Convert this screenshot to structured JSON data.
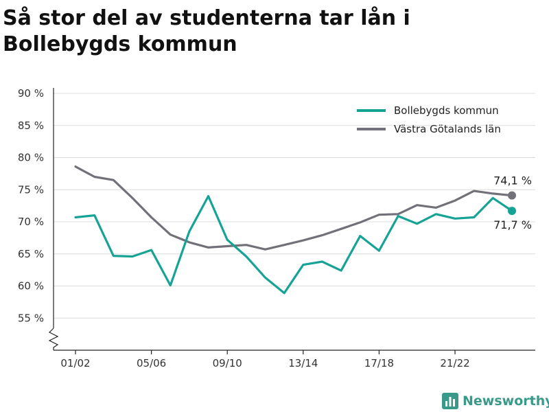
{
  "colors": {
    "series_1": "#16a396",
    "series_2": "#727078",
    "grid": "#dcdcdc",
    "axis": "#222222",
    "brand": "#3a9a8a"
  },
  "brand": {
    "name": "Newsworthy",
    "icon": "bar-chart-logo-icon"
  },
  "chart_data": {
    "type": "line",
    "title": "Så stor del av studenterna tar lån i Bollebygds kommun",
    "xlabel": "",
    "ylabel": "",
    "y_tick_values": [
      55,
      60,
      65,
      70,
      75,
      80,
      85,
      90
    ],
    "y_tick_labels": [
      "55 %",
      "60 %",
      "65 %",
      "70 %",
      "75 %",
      "80 %",
      "85 %",
      "90 %"
    ],
    "ylim": [
      50,
      90
    ],
    "y_axis_break": true,
    "grid": true,
    "legend_position": "top-right",
    "x_tick_labels": [
      "01/02",
      "05/06",
      "09/10",
      "13/14",
      "17/18",
      "21/22"
    ],
    "x_tick_positions": [
      0,
      4,
      8,
      12,
      16,
      20
    ],
    "x_count": 24,
    "series": [
      {
        "name": "Bollebygds kommun",
        "values": [
          70.7,
          71.0,
          64.7,
          64.6,
          65.6,
          60.1,
          68.5,
          74.0,
          67.2,
          64.6,
          61.3,
          58.9,
          63.3,
          63.8,
          62.4,
          67.8,
          65.5,
          70.9,
          69.7,
          71.2,
          70.5,
          70.7,
          73.7,
          71.7
        ],
        "end_label": "71,7 %"
      },
      {
        "name": "Västra Götalands län",
        "values": [
          78.6,
          77.0,
          76.5,
          73.7,
          70.7,
          68.0,
          66.8,
          66.0,
          66.2,
          66.4,
          65.7,
          66.4,
          67.1,
          67.9,
          68.9,
          69.9,
          71.1,
          71.2,
          72.6,
          72.2,
          73.3,
          74.8,
          74.4,
          74.1
        ],
        "end_label": "74,1 %"
      }
    ]
  }
}
